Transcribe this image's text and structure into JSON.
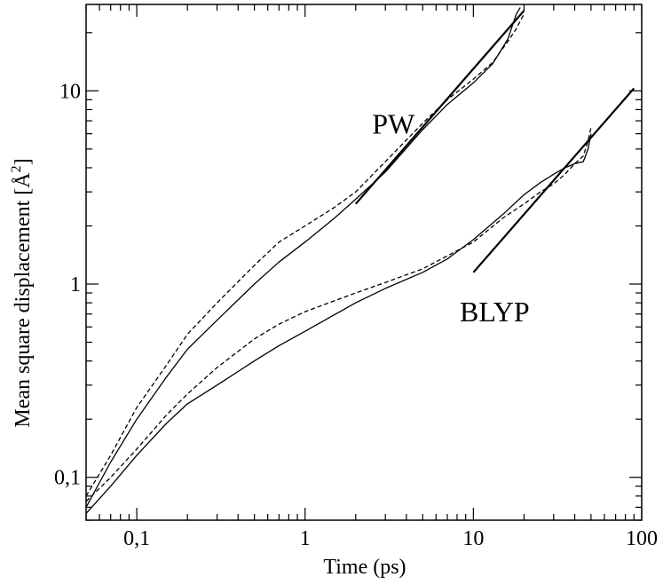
{
  "chart_data": {
    "type": "line",
    "xscale": "log",
    "yscale": "log",
    "xlim": [
      0.05,
      100
    ],
    "ylim": [
      0.06,
      28
    ],
    "xlabel": "Time (ps)",
    "ylabel_main": "Mean square displacement [",
    "ylabel_unit": "Å",
    "ylabel_exp": "2",
    "ylabel_close": "]",
    "x_ticks": [
      {
        "value": 0.1,
        "label": "0,1"
      },
      {
        "value": 1,
        "label": "1"
      },
      {
        "value": 10,
        "label": "10"
      },
      {
        "value": 100,
        "label": "100"
      }
    ],
    "y_ticks": [
      {
        "value": 0.1,
        "label": "0,1"
      },
      {
        "value": 1,
        "label": "1"
      },
      {
        "value": 10,
        "label": "10"
      }
    ],
    "annotations": [
      {
        "text": "PW",
        "x": 2.5,
        "y": 6.0
      },
      {
        "text": "BLYP",
        "x": 8.3,
        "y": 0.64
      }
    ],
    "series": [
      {
        "group": "PW",
        "style": "solid",
        "width": 1.3,
        "points": [
          [
            0.05,
            0.07
          ],
          [
            0.07,
            0.12
          ],
          [
            0.1,
            0.2
          ],
          [
            0.15,
            0.33
          ],
          [
            0.2,
            0.46
          ],
          [
            0.3,
            0.65
          ],
          [
            0.5,
            1.0
          ],
          [
            0.7,
            1.3
          ],
          [
            1.0,
            1.65
          ],
          [
            1.5,
            2.2
          ],
          [
            2.0,
            2.75
          ],
          [
            3.0,
            3.8
          ],
          [
            5.0,
            6.3
          ],
          [
            7.0,
            8.5
          ],
          [
            10.0,
            11.0
          ],
          [
            13.0,
            13.8
          ],
          [
            16.0,
            18.5
          ],
          [
            18.0,
            25.0
          ],
          [
            19.0,
            27.0
          ]
        ]
      },
      {
        "group": "PW",
        "style": "dashed",
        "width": 1.3,
        "points": [
          [
            0.05,
            0.08
          ],
          [
            0.07,
            0.13
          ],
          [
            0.1,
            0.23
          ],
          [
            0.15,
            0.38
          ],
          [
            0.2,
            0.55
          ],
          [
            0.3,
            0.8
          ],
          [
            0.5,
            1.25
          ],
          [
            0.7,
            1.65
          ],
          [
            1.0,
            2.0
          ],
          [
            1.5,
            2.5
          ],
          [
            2.0,
            3.0
          ],
          [
            3.0,
            4.3
          ],
          [
            5.0,
            6.8
          ],
          [
            7.0,
            9.0
          ],
          [
            10.0,
            11.5
          ],
          [
            13.0,
            14.0
          ],
          [
            16.0,
            18.0
          ],
          [
            18.0,
            21.0
          ],
          [
            20.0,
            25.0
          ]
        ]
      },
      {
        "group": "PW",
        "style": "fit",
        "width": 2.2,
        "points": [
          [
            2.0,
            2.6
          ],
          [
            20.0,
            26.0
          ]
        ]
      },
      {
        "group": "BLYP",
        "style": "solid",
        "width": 1.3,
        "points": [
          [
            0.05,
            0.065
          ],
          [
            0.07,
            0.09
          ],
          [
            0.1,
            0.13
          ],
          [
            0.15,
            0.19
          ],
          [
            0.2,
            0.24
          ],
          [
            0.3,
            0.3
          ],
          [
            0.5,
            0.4
          ],
          [
            0.7,
            0.48
          ],
          [
            1.0,
            0.57
          ],
          [
            2.0,
            0.8
          ],
          [
            3.0,
            0.95
          ],
          [
            5.0,
            1.15
          ],
          [
            7.0,
            1.35
          ],
          [
            10.0,
            1.7
          ],
          [
            15.0,
            2.3
          ],
          [
            20.0,
            2.9
          ],
          [
            25.0,
            3.35
          ],
          [
            30.0,
            3.7
          ],
          [
            35.0,
            4.0
          ],
          [
            40.0,
            4.2
          ],
          [
            45.0,
            4.3
          ],
          [
            48.0,
            5.0
          ],
          [
            50.0,
            6.0
          ]
        ]
      },
      {
        "group": "BLYP",
        "style": "dashed",
        "width": 1.3,
        "points": [
          [
            0.05,
            0.075
          ],
          [
            0.07,
            0.1
          ],
          [
            0.1,
            0.14
          ],
          [
            0.15,
            0.21
          ],
          [
            0.2,
            0.27
          ],
          [
            0.3,
            0.37
          ],
          [
            0.5,
            0.52
          ],
          [
            0.7,
            0.62
          ],
          [
            1.0,
            0.72
          ],
          [
            2.0,
            0.9
          ],
          [
            3.0,
            1.02
          ],
          [
            5.0,
            1.2
          ],
          [
            7.0,
            1.4
          ],
          [
            10.0,
            1.65
          ],
          [
            15.0,
            2.2
          ],
          [
            20.0,
            2.6
          ],
          [
            25.0,
            3.0
          ],
          [
            30.0,
            3.3
          ],
          [
            35.0,
            3.7
          ],
          [
            40.0,
            4.2
          ],
          [
            45.0,
            4.6
          ],
          [
            48.0,
            5.5
          ],
          [
            50.0,
            6.5
          ]
        ]
      },
      {
        "group": "BLYP",
        "style": "fit",
        "width": 2.2,
        "points": [
          [
            10.0,
            1.15
          ],
          [
            90.0,
            10.3
          ]
        ]
      }
    ]
  }
}
